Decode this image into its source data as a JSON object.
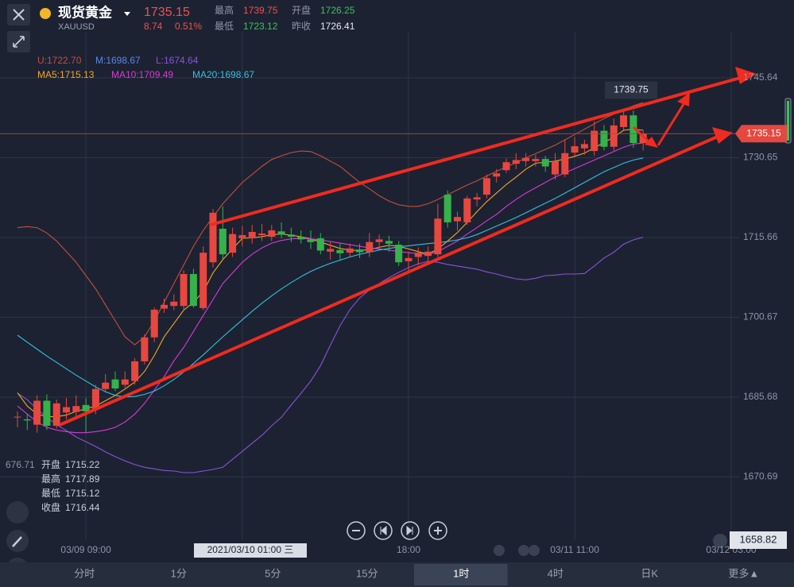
{
  "header": {
    "name": "现货黄金",
    "symbol": "XAUUSD",
    "price": "1735.15",
    "change": "8.74",
    "change_pct": "0.51%",
    "stats": [
      {
        "label": "最高",
        "value": "1739.75",
        "color": "#f0524a"
      },
      {
        "label": "开盘",
        "value": "1726.25",
        "color": "#3cc25a"
      },
      {
        "label": "最低",
        "value": "1723.12",
        "color": "#3cc25a"
      },
      {
        "label": "昨收",
        "value": "1726.41",
        "color": "#e6e9ef"
      }
    ]
  },
  "chart_data": {
    "type": "candlestick",
    "x_labels": [
      "03/09 09:00",
      "2021/03/10 01:00 三",
      "18:00",
      "03/11 11:00",
      "03/12 03:00"
    ],
    "open": [
      1681.9,
      1681.5,
      1680.5,
      1685.0,
      1680.3,
      1682.8,
      1682.9,
      1684.2,
      1683.3,
      1687.2,
      1689.0,
      1688.0,
      1688.7,
      1692.4,
      1696.9,
      1702.3,
      1702.8,
      1702.8,
      1708.8,
      1702.4,
      1711.0,
      1717.3,
      1712.8,
      1715.5,
      1715.5,
      1716.1,
      1715.8,
      1716.8,
      1716.2,
      1715.8,
      1715.3,
      1715.5,
      1713.0,
      1713.3,
      1712.8,
      1713.4,
      1712.9,
      1714.8,
      1715.0,
      1714.3,
      1711.2,
      1712.0,
      1712.2,
      1712.5,
      1723.7,
      1718.7,
      1718.5,
      1722.8,
      1723.7,
      1727.1,
      1728.3,
      1729.5,
      1730.0,
      1730.0,
      1730.4,
      1727.5,
      1727.5,
      1731.6,
      1732.4,
      1731.9,
      1735.7,
      1732.7,
      1736.4,
      1738.6,
      1733.4
    ],
    "high": [
      1683.0,
      1682.5,
      1686.0,
      1686.2,
      1685.2,
      1685.5,
      1686.0,
      1685.5,
      1688.0,
      1690.0,
      1690.5,
      1690.5,
      1693.0,
      1697.5,
      1702.5,
      1704.2,
      1705.0,
      1709.5,
      1709.8,
      1714.0,
      1721.0,
      1721.5,
      1717.5,
      1717.8,
      1718.0,
      1718.2,
      1718.0,
      1718.5,
      1717.5,
      1717.0,
      1717.0,
      1716.5,
      1714.8,
      1714.5,
      1714.5,
      1714.5,
      1716.5,
      1716.2,
      1716.0,
      1715.0,
      1713.0,
      1713.8,
      1714.0,
      1722.0,
      1724.5,
      1720.5,
      1723.5,
      1724.0,
      1727.5,
      1728.5,
      1730.5,
      1731.5,
      1731.5,
      1731.2,
      1731.0,
      1731.5,
      1734.0,
      1734.5,
      1734.0,
      1737.5,
      1736.8,
      1738.0,
      1739.75,
      1739.5,
      1735.8
    ],
    "low": [
      1680.0,
      1679.5,
      1679.0,
      1679.5,
      1679.8,
      1681.5,
      1681.8,
      1679.0,
      1682.5,
      1686.5,
      1686.8,
      1687.5,
      1688.0,
      1691.8,
      1696.0,
      1701.5,
      1702.0,
      1702.0,
      1702.5,
      1702.0,
      1710.0,
      1711.5,
      1712.0,
      1714.0,
      1714.5,
      1715.0,
      1715.0,
      1715.5,
      1714.8,
      1714.5,
      1713.5,
      1712.5,
      1711.5,
      1711.5,
      1712.0,
      1711.8,
      1712.0,
      1713.5,
      1713.0,
      1710.3,
      1709.0,
      1710.5,
      1711.0,
      1712.0,
      1717.5,
      1717.0,
      1718.0,
      1721.5,
      1723.0,
      1726.0,
      1727.8,
      1728.5,
      1729.0,
      1729.0,
      1728.0,
      1726.5,
      1727.0,
      1731.0,
      1731.2,
      1731.0,
      1732.0,
      1732.0,
      1735.8,
      1732.5,
      1732.0
    ],
    "close": [
      1682.0,
      1681.3,
      1685.0,
      1680.3,
      1684.5,
      1683.8,
      1684.0,
      1683.0,
      1687.2,
      1688.4,
      1687.3,
      1689.0,
      1692.4,
      1696.9,
      1702.1,
      1703.0,
      1703.6,
      1708.8,
      1702.8,
      1712.8,
      1720.3,
      1712.5,
      1716.3,
      1716.1,
      1716.7,
      1716.4,
      1717.0,
      1716.2,
      1715.8,
      1715.3,
      1714.8,
      1713.2,
      1713.5,
      1712.7,
      1713.6,
      1712.9,
      1714.8,
      1715.3,
      1714.5,
      1711.0,
      1711.8,
      1712.8,
      1713.0,
      1719.2,
      1718.5,
      1719.5,
      1723.0,
      1723.2,
      1726.8,
      1727.7,
      1729.8,
      1730.2,
      1730.6,
      1730.4,
      1729.0,
      1730.0,
      1731.5,
      1732.8,
      1733.2,
      1735.7,
      1732.7,
      1736.7,
      1738.6,
      1733.4,
      1735.15
    ],
    "up_color": "#e8473f",
    "down_color": "#35b34a",
    "series": [
      {
        "name": "U:1722.70",
        "color": "#c2503c",
        "values": [
          1717.5,
          1717.7,
          1717.5,
          1716.5,
          1715,
          1713,
          1711,
          1708.5,
          1706,
          1703,
          1700,
          1697,
          1695.5,
          1697,
          1700,
          1703.5,
          1707,
          1710.5,
          1714,
          1717,
          1719.5,
          1722,
          1724,
          1726,
          1727.5,
          1729,
          1730.3,
          1731,
          1731.6,
          1731.9,
          1731.8,
          1731,
          1730,
          1729,
          1727.5,
          1726,
          1724.8,
          1723.5,
          1722.5,
          1721.8,
          1721.5,
          1721.5,
          1722,
          1722.8,
          1723.7,
          1724.6,
          1725.5,
          1726.3,
          1727.2,
          1728.1,
          1728.9,
          1729.7,
          1730.6,
          1731.4,
          1732.2,
          1733,
          1734,
          1735,
          1736,
          1737,
          1738,
          1738.8,
          1739.6,
          1740.4,
          1741
        ]
      },
      {
        "name": "L:1674.64",
        "color": "#8b52d8",
        "values": [
          1686.4,
          1685.2,
          1683.4,
          1681.9,
          1680.5,
          1679.4,
          1678.2,
          1677.3,
          1676.4,
          1675.4,
          1674.5,
          1673.7,
          1673.0,
          1672.5,
          1672.2,
          1671.9,
          1671.8,
          1671.5,
          1671.5,
          1671.8,
          1672.1,
          1672.5,
          1674.0,
          1675.5,
          1677.0,
          1678.5,
          1680.3,
          1681.9,
          1684.2,
          1686.4,
          1688.7,
          1691.6,
          1695.4,
          1699.1,
          1702.1,
          1704.3,
          1705.8,
          1707.0,
          1708.1,
          1709.1,
          1710.0,
          1710.7,
          1711.2,
          1711.0,
          1710.6,
          1710.3,
          1710.0,
          1709.7,
          1709.2,
          1708.8,
          1708.3,
          1707.9,
          1707.7,
          1708.0,
          1708.5,
          1708.6,
          1708.8,
          1708.8,
          1708.9,
          1710.3,
          1711.8,
          1712.9,
          1714.4,
          1715.2,
          1715.7
        ]
      },
      {
        "name": "MA5:1715.13",
        "color": "#f5a623",
        "values": [
          1686.5,
          1684,
          1682.5,
          1682,
          1682,
          1682.3,
          1683,
          1683.5,
          1684,
          1685,
          1686,
          1687.2,
          1688.5,
          1690.5,
          1693.5,
          1697,
          1699.5,
          1702,
          1703.5,
          1705.5,
          1709,
          1711.5,
          1713.5,
          1715.5,
          1715.6,
          1715.8,
          1716.2,
          1716.3,
          1716.1,
          1715.8,
          1715.4,
          1714.8,
          1714.2,
          1713.6,
          1713.3,
          1713.2,
          1713.4,
          1713.8,
          1714.2,
          1714,
          1713.5,
          1713,
          1712.5,
          1713.5,
          1715,
          1716.6,
          1718.5,
          1720.5,
          1722.4,
          1724,
          1725.6,
          1727,
          1728.5,
          1729.6,
          1729.8,
          1730,
          1730.4,
          1730.9,
          1731.5,
          1732.5,
          1733.5,
          1734.5,
          1735.8,
          1736,
          1735.8
        ]
      },
      {
        "name": "MA10:1709.49",
        "color": "#d83ad8",
        "values": [
          1684,
          1682.5,
          1681,
          1680,
          1679.5,
          1679.2,
          1679,
          1679,
          1679.2,
          1679.5,
          1680,
          1681,
          1682.5,
          1684.5,
          1687,
          1689.5,
          1692.5,
          1695,
          1698,
          1701,
          1704,
          1707,
          1709,
          1711,
          1712.5,
          1713.7,
          1714.6,
          1715.1,
          1715.4,
          1715.5,
          1715.4,
          1715.2,
          1714.9,
          1714.6,
          1714.3,
          1714,
          1713.7,
          1713.5,
          1713.3,
          1713,
          1712.8,
          1712.6,
          1712.5,
          1713,
          1714,
          1715,
          1716.3,
          1717.5,
          1718.8,
          1720,
          1721.5,
          1722.8,
          1724,
          1725,
          1726,
          1727,
          1727.8,
          1728.6,
          1729.4,
          1730.2,
          1731,
          1731.8,
          1732.6,
          1733.2,
          1733.4
        ]
      },
      {
        "name": "MA20:1698.67",
        "color": "#30c2e2",
        "values": [
          1697.3,
          1696,
          1694.7,
          1693.4,
          1692.2,
          1691,
          1689.8,
          1688.7,
          1687.6,
          1686.7,
          1686,
          1685.7,
          1685.8,
          1686.2,
          1686.8,
          1687.8,
          1689,
          1690.4,
          1692,
          1693.6,
          1695.3,
          1697,
          1698.6,
          1700.2,
          1701.8,
          1703.3,
          1704.7,
          1706,
          1707.2,
          1708.3,
          1709.3,
          1710.1,
          1710.8,
          1711.4,
          1712,
          1712.5,
          1712.9,
          1713.3,
          1713.6,
          1713.9,
          1714.1,
          1714.3,
          1714.5,
          1714.7,
          1714.9,
          1715.2,
          1715.6,
          1716.2,
          1717,
          1717.8,
          1718.6,
          1719.4,
          1720.3,
          1721.2,
          1722.1,
          1723,
          1724,
          1725,
          1726,
          1727,
          1728,
          1728.8,
          1729.6,
          1730.2,
          1730.6
        ]
      }
    ],
    "legend_extra": {
      "text": "M:1698.67",
      "color": "#5b86e5"
    },
    "ylim": [
      1658.82,
      1754.29
    ],
    "yticks": [
      1670.69,
      1685.68,
      1700.67,
      1715.66,
      1730.65,
      1745.64
    ],
    "grid": true,
    "last_price": 1735.15,
    "high_marker": 1739.75,
    "cursor_price": 1658.82,
    "cursor_left": "676.71",
    "tooltip": [
      {
        "label": "开盘",
        "value": "1715.22"
      },
      {
        "label": "最高",
        "value": "1717.89"
      },
      {
        "label": "最低",
        "value": "1715.12"
      },
      {
        "label": "收盘",
        "value": "1716.44"
      }
    ]
  },
  "controls": {
    "tabs": [
      "分时",
      "1分",
      "5分",
      "15分",
      "1时",
      "4时",
      "日K",
      "更多▲"
    ],
    "active_tab": 4
  }
}
